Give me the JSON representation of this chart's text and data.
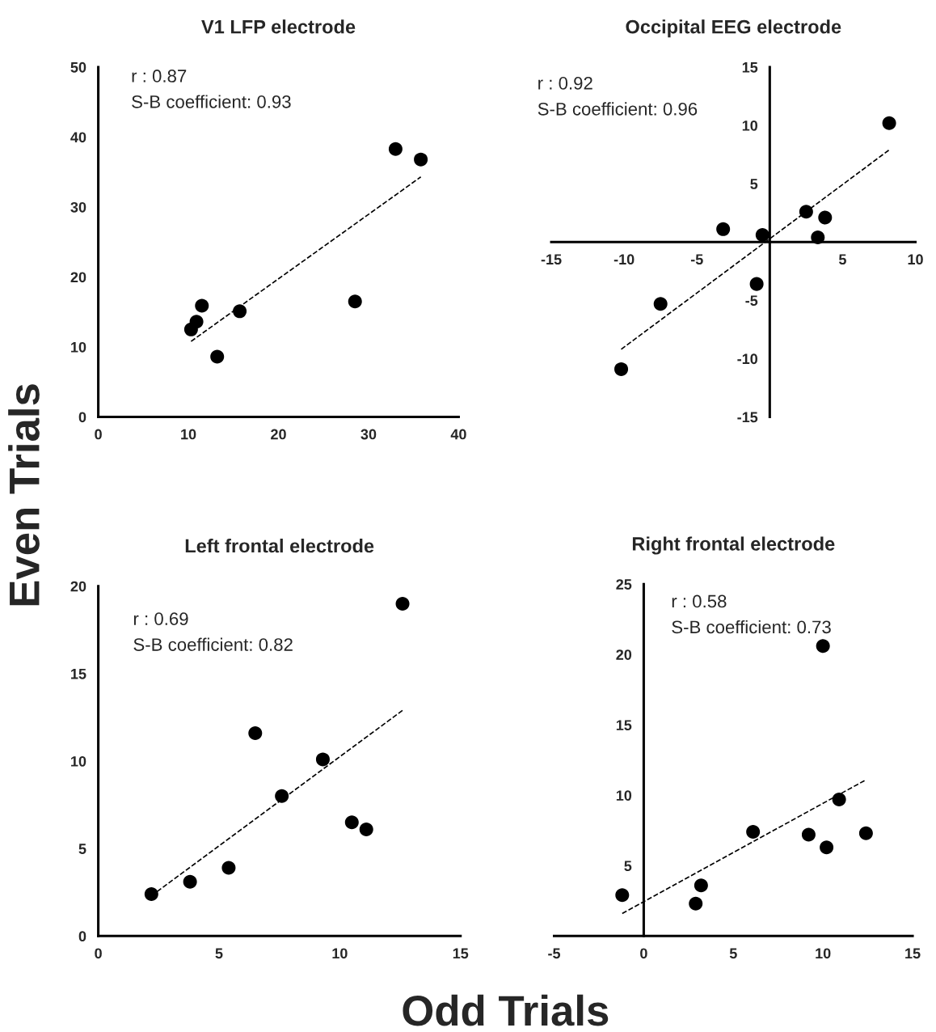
{
  "chart_data": [
    {
      "type": "scatter",
      "title": "V1 LFP electrode",
      "xlabel": "Odd Trials",
      "ylabel": "Even Trials",
      "annotations": [
        "r : 0.87",
        "S-B coefficient: 0.93"
      ],
      "xlim": [
        0,
        40
      ],
      "ylim": [
        0,
        50
      ],
      "xticks": [
        0,
        10,
        20,
        30,
        40
      ],
      "yticks": [
        0,
        10,
        20,
        30,
        40,
        50
      ],
      "grid": false,
      "series": [
        {
          "marker": "circle",
          "color": "#000000",
          "x": [
            10.3,
            10.9,
            11.5,
            13.2,
            15.7,
            28.5,
            33,
            35.8
          ],
          "values": [
            12.5,
            13.6,
            15.9,
            8.6,
            15.1,
            16.5,
            38.3,
            36.8
          ]
        },
        {
          "type": "line",
          "color": "#000000",
          "line_style": "dashed",
          "x": [
            10.3,
            35.8
          ],
          "values": [
            10.8,
            34.3
          ]
        }
      ]
    },
    {
      "type": "scatter",
      "title": "Occipital EEG electrode",
      "annotations": [
        "r : 0.92",
        "S-B coefficient: 0.96"
      ],
      "xlim": [
        -15,
        10
      ],
      "ylim": [
        -15,
        15
      ],
      "xticks": [
        -15,
        -10,
        -5,
        5,
        10
      ],
      "yticks": [
        -15,
        -10,
        -5,
        5,
        10,
        15
      ],
      "grid": false,
      "series": [
        {
          "marker": "circle",
          "color": "#000000",
          "x": [
            -10.2,
            -7.5,
            -3.2,
            -0.9,
            -0.5,
            2.5,
            3.3,
            3.8,
            8.2
          ],
          "values": [
            -10.9,
            -5.3,
            1.1,
            -3.6,
            0.6,
            2.6,
            0.4,
            2.1,
            10.2
          ]
        },
        {
          "type": "line",
          "color": "#000000",
          "line_style": "dashed",
          "x": [
            -10.2,
            8.2
          ],
          "values": [
            -9.2,
            7.9
          ]
        }
      ]
    },
    {
      "type": "scatter",
      "title": "Left frontal electrode",
      "annotations": [
        "r : 0.69",
        "S-B coefficient: 0.82"
      ],
      "xlim": [
        0,
        15
      ],
      "ylim": [
        0,
        20
      ],
      "xticks": [
        0,
        5,
        10,
        15
      ],
      "yticks": [
        0,
        5,
        10,
        15,
        20
      ],
      "grid": false,
      "series": [
        {
          "marker": "circle",
          "color": "#000000",
          "x": [
            2.2,
            3.8,
            5.4,
            6.5,
            7.6,
            9.3,
            10.5,
            11.1,
            12.6
          ],
          "values": [
            2.4,
            3.1,
            3.9,
            11.6,
            8.0,
            10.1,
            6.5,
            6.1,
            19.0
          ]
        },
        {
          "type": "line",
          "color": "#000000",
          "line_style": "dashed",
          "x": [
            2.2,
            12.6
          ],
          "values": [
            2.3,
            12.9
          ]
        }
      ]
    },
    {
      "type": "scatter",
      "title": "Right frontal electrode",
      "annotations": [
        "r : 0.58",
        "S-B coefficient: 0.73"
      ],
      "xlim": [
        -5,
        15
      ],
      "ylim": [
        0,
        25
      ],
      "xticks": [
        -5,
        0,
        5,
        10,
        15
      ],
      "yticks": [
        5,
        10,
        15,
        20,
        25
      ],
      "grid": false,
      "series": [
        {
          "marker": "circle",
          "color": "#000000",
          "x": [
            -1.2,
            2.9,
            3.2,
            6.1,
            9.2,
            10.0,
            10.2,
            10.9,
            12.4
          ],
          "values": [
            2.9,
            2.3,
            3.6,
            7.4,
            7.2,
            20.6,
            6.3,
            9.7,
            7.3
          ]
        },
        {
          "type": "line",
          "color": "#000000",
          "line_style": "dashed",
          "x": [
            -1.2,
            12.4
          ],
          "values": [
            1.6,
            11.1
          ]
        }
      ]
    }
  ]
}
